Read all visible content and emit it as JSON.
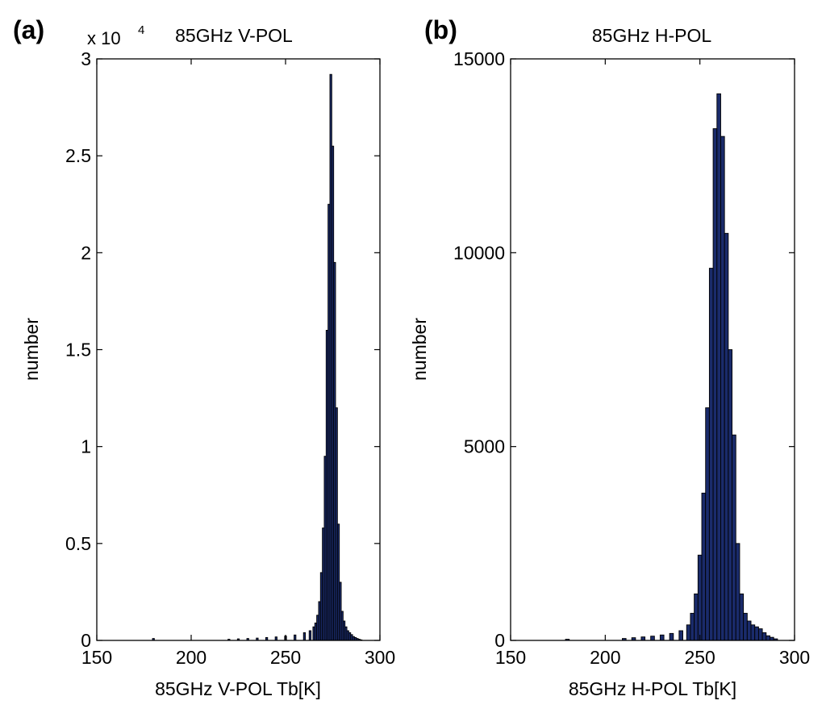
{
  "chart_data": [
    {
      "type": "bar",
      "panel_label": "(a)",
      "title": "85GHz V-POL",
      "xlabel": "85GHz V-POL Tb[K]",
      "ylabel": "number",
      "xlim": [
        150,
        300
      ],
      "ylim": [
        0,
        30000
      ],
      "x_ticks": [
        150,
        200,
        250,
        300
      ],
      "y_ticks": [
        0,
        5000,
        10000,
        15000,
        20000,
        25000,
        30000
      ],
      "y_tick_labels": [
        "0",
        "0.5",
        "1",
        "1.5",
        "2",
        "2.5",
        "3"
      ],
      "y_multiplier": {
        "base": "x 10",
        "exponent": "4"
      },
      "bin_width": 1,
      "x": [
        180,
        220,
        225,
        230,
        235,
        240,
        245,
        250,
        255,
        260,
        263,
        265,
        266,
        267,
        268,
        269,
        270,
        271,
        272,
        273,
        274,
        275,
        276,
        277,
        278,
        279,
        280,
        281,
        282,
        283,
        284,
        285,
        286,
        287,
        288,
        289,
        290
      ],
      "values": [
        100,
        60,
        80,
        100,
        120,
        150,
        180,
        220,
        280,
        400,
        500,
        700,
        900,
        1300,
        2000,
        3500,
        5800,
        9500,
        16000,
        22500,
        29200,
        25500,
        19500,
        12000,
        6000,
        3000,
        1500,
        1000,
        700,
        500,
        400,
        300,
        200,
        150,
        100,
        60,
        30
      ],
      "grid": false,
      "bar_color": "#1a2b6b"
    },
    {
      "type": "bar",
      "panel_label": "(b)",
      "title": "85GHz H-POL",
      "xlabel": "85GHz H-POL Tb[K]",
      "ylabel": "number",
      "xlim": [
        150,
        300
      ],
      "ylim": [
        0,
        15000
      ],
      "x_ticks": [
        150,
        200,
        250,
        300
      ],
      "y_ticks": [
        0,
        5000,
        10000,
        15000
      ],
      "y_tick_labels": [
        "0",
        "5000",
        "10000",
        "15000"
      ],
      "bin_width": 2,
      "x": [
        180,
        210,
        215,
        220,
        225,
        230,
        235,
        240,
        244,
        246,
        248,
        250,
        252,
        254,
        256,
        258,
        260,
        262,
        264,
        266,
        268,
        270,
        272,
        274,
        276,
        278,
        280,
        282,
        284,
        286,
        288,
        290
      ],
      "values": [
        30,
        50,
        70,
        90,
        110,
        140,
        180,
        250,
        400,
        700,
        1200,
        2200,
        3800,
        6000,
        9600,
        13200,
        14100,
        13000,
        10500,
        7500,
        5300,
        2500,
        1200,
        700,
        500,
        400,
        350,
        300,
        200,
        120,
        80,
        40
      ],
      "grid": false,
      "bar_color": "#1a2b6b"
    }
  ]
}
